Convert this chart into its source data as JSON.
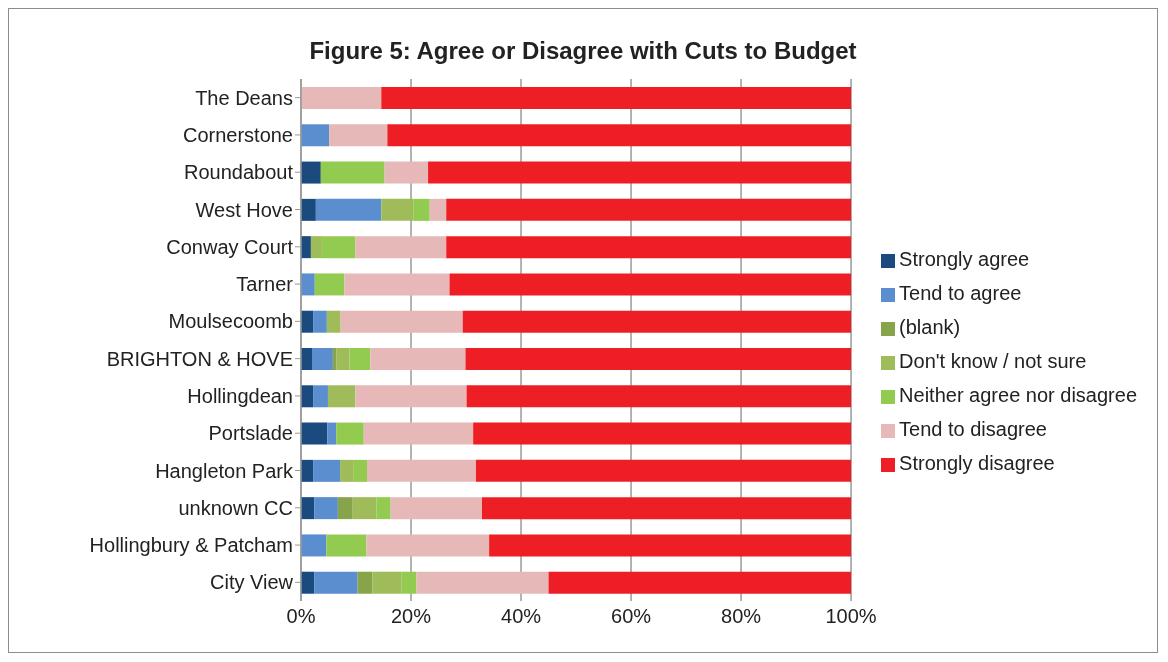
{
  "chart_data": {
    "type": "bar",
    "orientation": "horizontal",
    "stacked": true,
    "title": "Figure 5: Agree or Disagree with Cuts to Budget",
    "categories": [
      "The Deans",
      "Cornerstone",
      "Roundabout",
      "West Hove",
      "Conway Court",
      "Tarner",
      "Moulsecoomb",
      "BRIGHTON & HOVE",
      "Hollingdean",
      "Portslade",
      "Hangleton Park",
      "unknown CC",
      "Hollingbury & Patcham",
      "City View"
    ],
    "series": [
      {
        "name": "Strongly agree",
        "color": "#1a4a7e",
        "values": [
          0,
          0,
          3.6,
          2.7,
          1.8,
          0,
          2.2,
          2.0,
          2.2,
          4.8,
          2.2,
          2.4,
          0,
          2.4
        ]
      },
      {
        "name": "Tend to agree",
        "color": "#5a8ecf",
        "values": [
          0,
          5.1,
          0,
          11.9,
          0,
          2.5,
          2.5,
          3.8,
          2.7,
          1.6,
          4.9,
          4.3,
          4.6,
          7.9
        ]
      },
      {
        "name": "(blank)",
        "color": "#87a44b",
        "values": [
          0,
          0,
          0,
          0,
          0,
          0,
          0,
          0.6,
          0,
          0,
          0,
          2.7,
          0,
          2.7
        ]
      },
      {
        "name": "Don't know / not sure",
        "color": "#9fbb5a",
        "values": [
          0,
          0,
          0,
          5.8,
          2.0,
          0,
          2.5,
          2.4,
          5.0,
          0,
          2.5,
          4.3,
          0,
          5.3
        ]
      },
      {
        "name": "Neither agree nor disagree",
        "color": "#92cb50",
        "values": [
          0,
          0,
          11.6,
          3.0,
          6.1,
          5.4,
          0,
          3.8,
          0,
          5.0,
          2.4,
          2.6,
          7.3,
          2.7
        ]
      },
      {
        "name": "Tend to disagree",
        "color": "#e6b9b8",
        "values": [
          14.6,
          10.6,
          7.9,
          3.0,
          16.5,
          19.1,
          22.2,
          17.3,
          20.2,
          19.9,
          19.8,
          16.6,
          22.3,
          24.0
        ]
      },
      {
        "name": "Strongly disagree",
        "color": "#ee1f24",
        "values": [
          85.4,
          84.3,
          76.9,
          73.6,
          73.6,
          73.0,
          70.6,
          70.1,
          69.9,
          68.7,
          68.2,
          67.1,
          65.8,
          55.0
        ]
      }
    ],
    "xlim": [
      0,
      100
    ],
    "xticks": [
      {
        "value": 0,
        "label": "0%"
      },
      {
        "value": 20,
        "label": "20%"
      },
      {
        "value": 40,
        "label": "40%"
      },
      {
        "value": 60,
        "label": "60%"
      },
      {
        "value": 80,
        "label": "80%"
      },
      {
        "value": 100,
        "label": "100%"
      }
    ],
    "grid": "x",
    "legend": "right"
  }
}
